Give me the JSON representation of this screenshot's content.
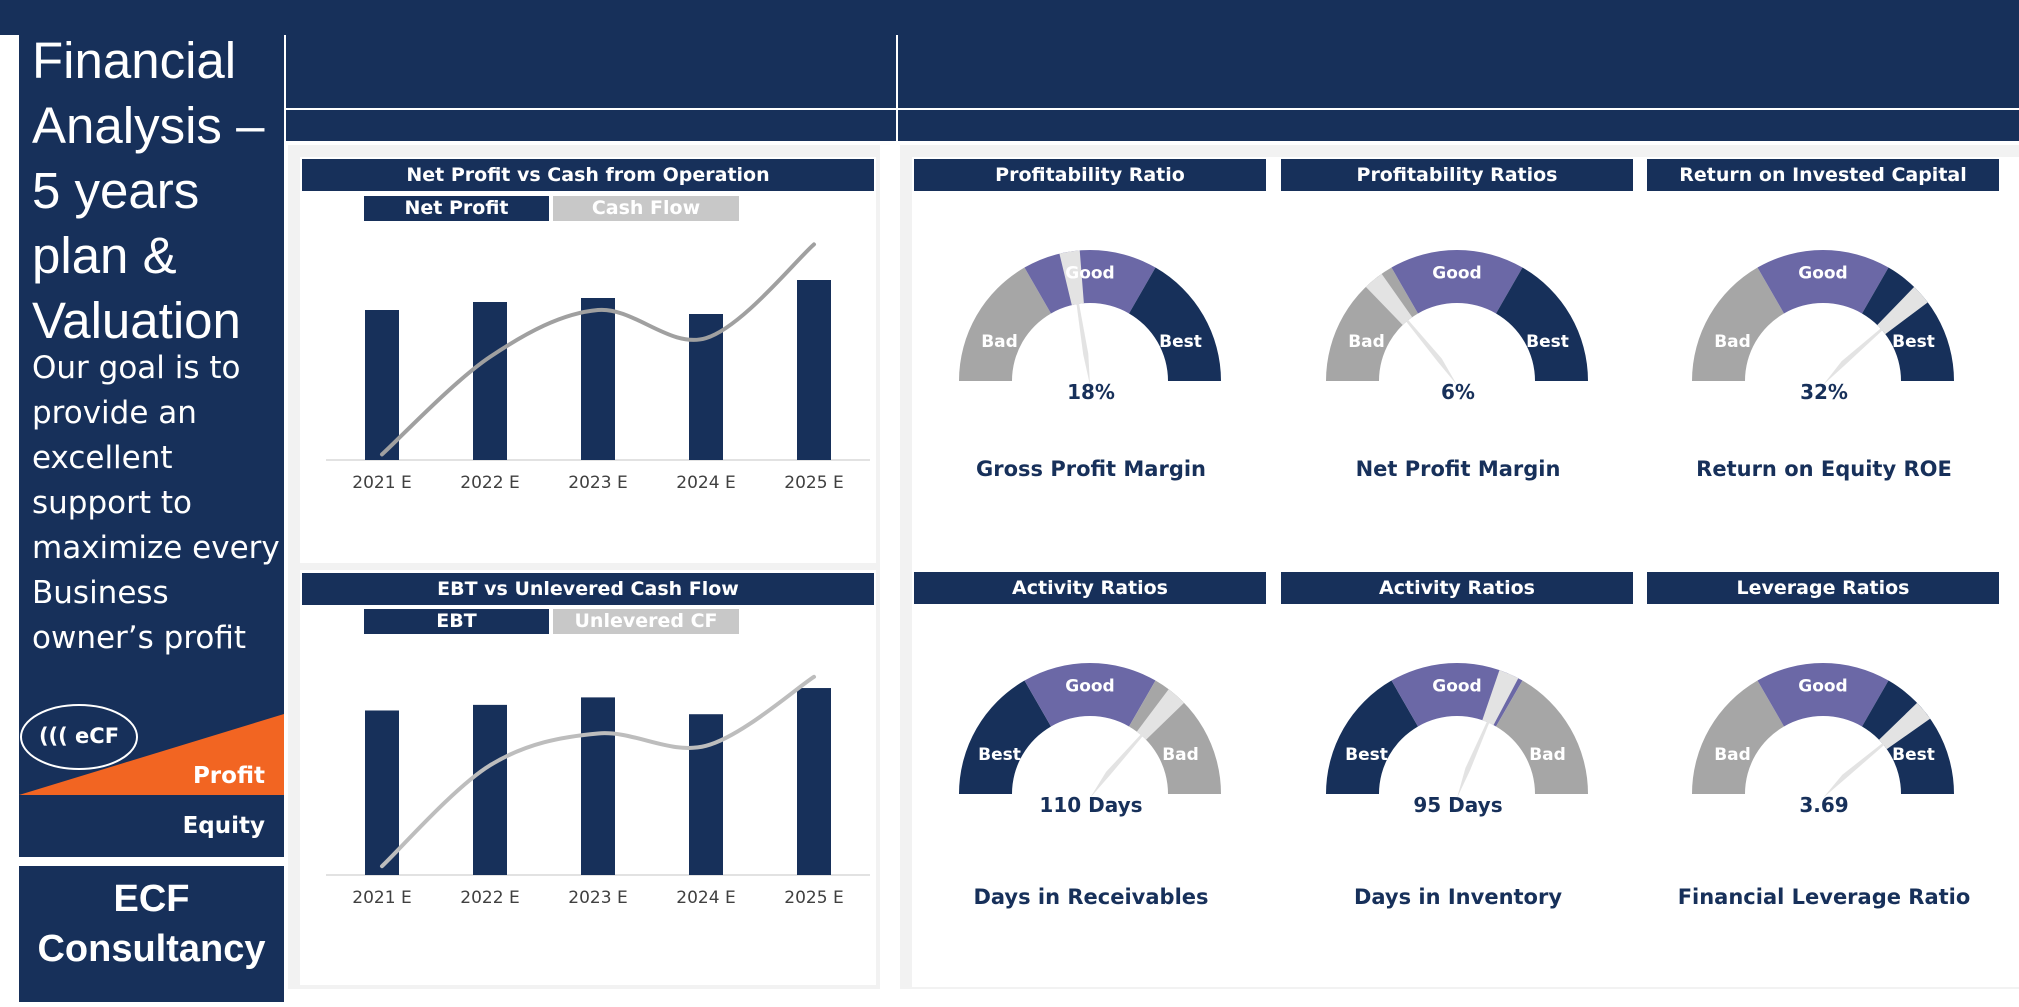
{
  "sidebar": {
    "title": "Financial Analysis – 5 years plan & Valuation",
    "goal": "Our goal is to provide an excellent support to maximize every Business owner’s profit",
    "logo_text": "((( eCF",
    "profit_label": "Profit",
    "equity_label": "Equity",
    "company_line1": "ECF",
    "company_line2": "Consultancy"
  },
  "colors": {
    "navy": "#17305a",
    "gray": "#a6a6a6",
    "purple": "#6b68a6",
    "orange": "#f26522",
    "light": "#d9d9d9"
  },
  "chart_data": [
    {
      "type": "bar",
      "title": "Net Profit vs Cash from Operation",
      "categories": [
        "2021 E",
        "2022 E",
        "2023 E",
        "2024 E",
        "2025 E"
      ],
      "series": [
        {
          "name": "Net Profit",
          "type": "bar",
          "values": [
            75,
            79,
            81,
            73,
            90
          ]
        },
        {
          "name": "Cash Flow",
          "type": "line",
          "values": [
            -12,
            40,
            65,
            50,
            100
          ]
        }
      ],
      "ylim": [
        -15,
        105
      ],
      "legend": "top"
    },
    {
      "type": "bar",
      "title": "EBT vs Unlevered Cash Flow",
      "categories": [
        "2021 E",
        "2022 E",
        "2023 E",
        "2024 E",
        "2025 E"
      ],
      "series": [
        {
          "name": "EBT",
          "type": "bar",
          "values": [
            88,
            91,
            95,
            86,
            100
          ]
        },
        {
          "name": "Unlevered CF",
          "type": "line",
          "values": [
            -10,
            47,
            65,
            58,
            97
          ]
        }
      ],
      "ylim": [
        -15,
        115
      ],
      "legend": "top"
    }
  ],
  "gauges": [
    {
      "title": "Profitability Ratio",
      "metric": "Gross Profit Margin",
      "value_label": "18%",
      "needle_fraction": 0.45,
      "zones": [
        "Bad",
        "Good",
        "Best"
      ],
      "zone_colors": [
        "#a6a6a6",
        "#6b68a6",
        "#17305a"
      ]
    },
    {
      "title": "Profitability Ratios",
      "metric": "Net Profit Margin",
      "value_label": "6%",
      "needle_fraction": 0.28,
      "zones": [
        "Bad",
        "Good",
        "Best"
      ],
      "zone_colors": [
        "#a6a6a6",
        "#6b68a6",
        "#17305a"
      ]
    },
    {
      "title": "Return on Invested Capital",
      "metric": "Return on Equity ROE",
      "value_label": "32%",
      "needle_fraction": 0.77,
      "zones": [
        "Bad",
        "Good",
        "Best"
      ],
      "zone_colors": [
        "#a6a6a6",
        "#6b68a6",
        "#17305a"
      ]
    },
    {
      "title": "Activity Ratios",
      "metric": "Days in Receivables",
      "value_label": "110 Days",
      "needle_fraction": 0.73,
      "zones": [
        "Best",
        "Good",
        "Bad"
      ],
      "zone_colors": [
        "#17305a",
        "#6b68a6",
        "#a6a6a6"
      ]
    },
    {
      "title": "Activity Ratios",
      "metric": "Days in Inventory",
      "value_label": "95 Days",
      "needle_fraction": 0.63,
      "zones": [
        "Best",
        "Good",
        "Bad"
      ],
      "zone_colors": [
        "#17305a",
        "#6b68a6",
        "#a6a6a6"
      ]
    },
    {
      "title": "Leverage Ratios",
      "metric": "Financial Leverage Ratio",
      "value_label": "3.69",
      "needle_fraction": 0.78,
      "zones": [
        "Bad",
        "Good",
        "Best"
      ],
      "zone_colors": [
        "#a6a6a6",
        "#6b68a6",
        "#17305a"
      ]
    }
  ]
}
